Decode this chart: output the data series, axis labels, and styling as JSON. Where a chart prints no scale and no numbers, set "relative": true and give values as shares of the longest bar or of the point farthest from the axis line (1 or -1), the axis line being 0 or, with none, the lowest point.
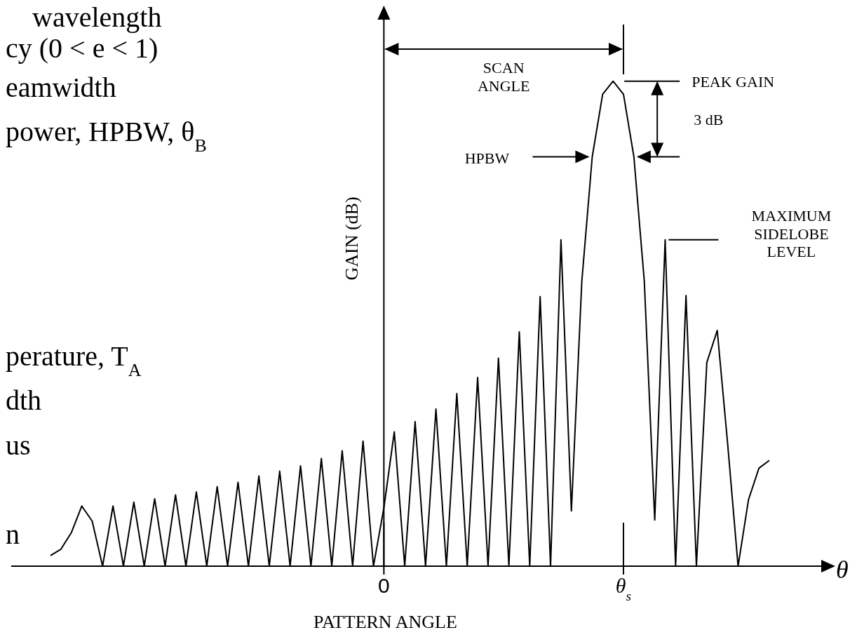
{
  "chart_data": {
    "type": "line",
    "relative": true,
    "xlabel": "PATTERN ANGLE",
    "ylabel": "GAIN (dB)",
    "line_style": "solid",
    "categories": [
      null,
      null,
      null,
      null,
      null,
      null,
      null,
      null,
      null,
      null,
      null,
      null,
      null,
      null,
      null,
      null,
      null,
      null,
      null,
      null,
      null,
      null,
      null,
      null,
      null,
      null,
      null,
      null,
      null,
      null,
      null,
      null,
      "0",
      null,
      null,
      null,
      null,
      null,
      null,
      null,
      null,
      null,
      null,
      null,
      null,
      null,
      null,
      null,
      null,
      null,
      null,
      null,
      null,
      null,
      null,
      "θ$_{s}$",
      null,
      null,
      null,
      null,
      null,
      null,
      null,
      null,
      null,
      null,
      null,
      null,
      null,
      null
    ],
    "series": [
      {
        "color": "#000000",
        "values": [
          0.022,
          0.035,
          0.069,
          0.124,
          0.093,
          0,
          0.124,
          0,
          0.132,
          0,
          0.139,
          0,
          0.147,
          0,
          0.153,
          0,
          0.164,
          0,
          0.173,
          0,
          0.186,
          0,
          0.196,
          0,
          0.207,
          0,
          0.222,
          0,
          0.238,
          0,
          0.258,
          0,
          0.12,
          0.277,
          0,
          0.298,
          0,
          0.324,
          0,
          0.356,
          0,
          0.389,
          0,
          0.429,
          0,
          0.483,
          0,
          0.556,
          0,
          0.673,
          0.114,
          0.587,
          0.844,
          0.973,
          1,
          0.973,
          0.844,
          0.587,
          0.095,
          0.673,
          0,
          0.558,
          0,
          0.42,
          0.486,
          0.252,
          0,
          0.137,
          0.202,
          0.218
        ]
      }
    ],
    "annotations": [
      "SCAN ANGLE",
      "PEAK GAIN",
      "3 dB",
      "HPBW",
      "MAXIMUM SIDELOBE LEVEL",
      "θ",
      "wavelength",
      "cy (0 < e < 1)",
      "eamwidth",
      "power, HPBW, θ$_{B}$",
      "perature, T$_{A}$",
      "dth",
      "us",
      "n"
    ]
  }
}
